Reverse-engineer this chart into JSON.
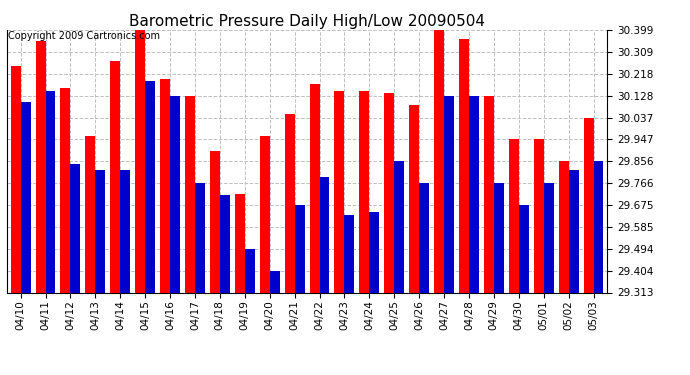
{
  "title": "Barometric Pressure Daily High/Low 20090504",
  "copyright": "Copyright 2009 Cartronics.com",
  "labels": [
    "04/10",
    "04/11",
    "04/12",
    "04/13",
    "04/14",
    "04/15",
    "04/16",
    "04/17",
    "04/18",
    "04/19",
    "04/20",
    "04/21",
    "04/22",
    "04/23",
    "04/24",
    "04/25",
    "04/26",
    "04/27",
    "04/28",
    "04/29",
    "04/30",
    "05/01",
    "05/02",
    "05/03"
  ],
  "highs": [
    30.25,
    30.355,
    30.16,
    29.96,
    30.27,
    30.399,
    30.195,
    30.128,
    29.9,
    29.72,
    29.96,
    30.05,
    30.175,
    30.145,
    30.145,
    30.14,
    30.09,
    30.399,
    30.36,
    30.128,
    29.947,
    29.947,
    29.856,
    30.037
  ],
  "lows": [
    30.1,
    30.148,
    29.845,
    29.82,
    29.82,
    30.19,
    30.128,
    29.766,
    29.718,
    29.494,
    29.404,
    29.675,
    29.79,
    29.635,
    29.645,
    29.856,
    29.766,
    30.128,
    30.128,
    29.766,
    29.675,
    29.766,
    29.82,
    29.856
  ],
  "ymin": 29.313,
  "ymax": 30.399,
  "yticks": [
    29.313,
    29.404,
    29.494,
    29.585,
    29.675,
    29.766,
    29.856,
    29.947,
    30.037,
    30.128,
    30.218,
    30.309,
    30.399
  ],
  "bar_width": 0.4,
  "high_color": "#ff0000",
  "low_color": "#0000cc",
  "bg_color": "#ffffff",
  "grid_color": "#c0c0c0",
  "title_fontsize": 11,
  "tick_fontsize": 7.5,
  "copyright_fontsize": 7
}
